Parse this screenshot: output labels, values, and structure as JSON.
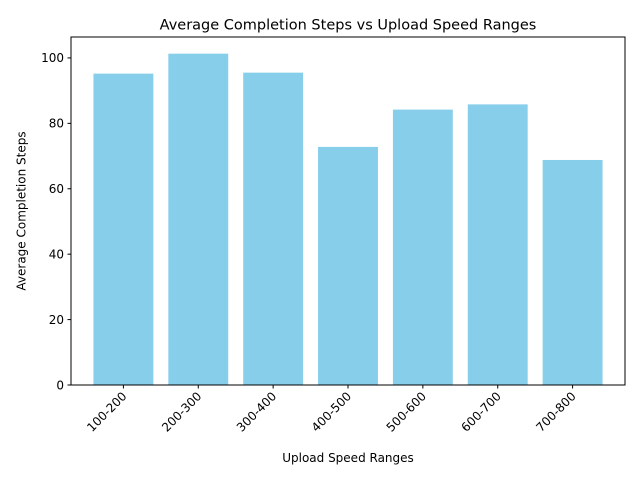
{
  "chart_data": {
    "type": "bar",
    "title": "Average Completion Steps vs Upload Speed Ranges",
    "xlabel": "Upload Speed Ranges",
    "ylabel": "Average Completion Steps",
    "categories": [
      "100-200",
      "200-300",
      "300-400",
      "400-500",
      "500-600",
      "600-700",
      "700-800"
    ],
    "values": [
      95.2,
      101.3,
      95.5,
      72.8,
      84.2,
      85.8,
      68.8
    ],
    "ylim": [
      0,
      106.4
    ],
    "yticks": [
      0,
      20,
      40,
      60,
      80,
      100
    ],
    "bar_color": "#87ceeb",
    "grid": false,
    "legend": "none"
  }
}
